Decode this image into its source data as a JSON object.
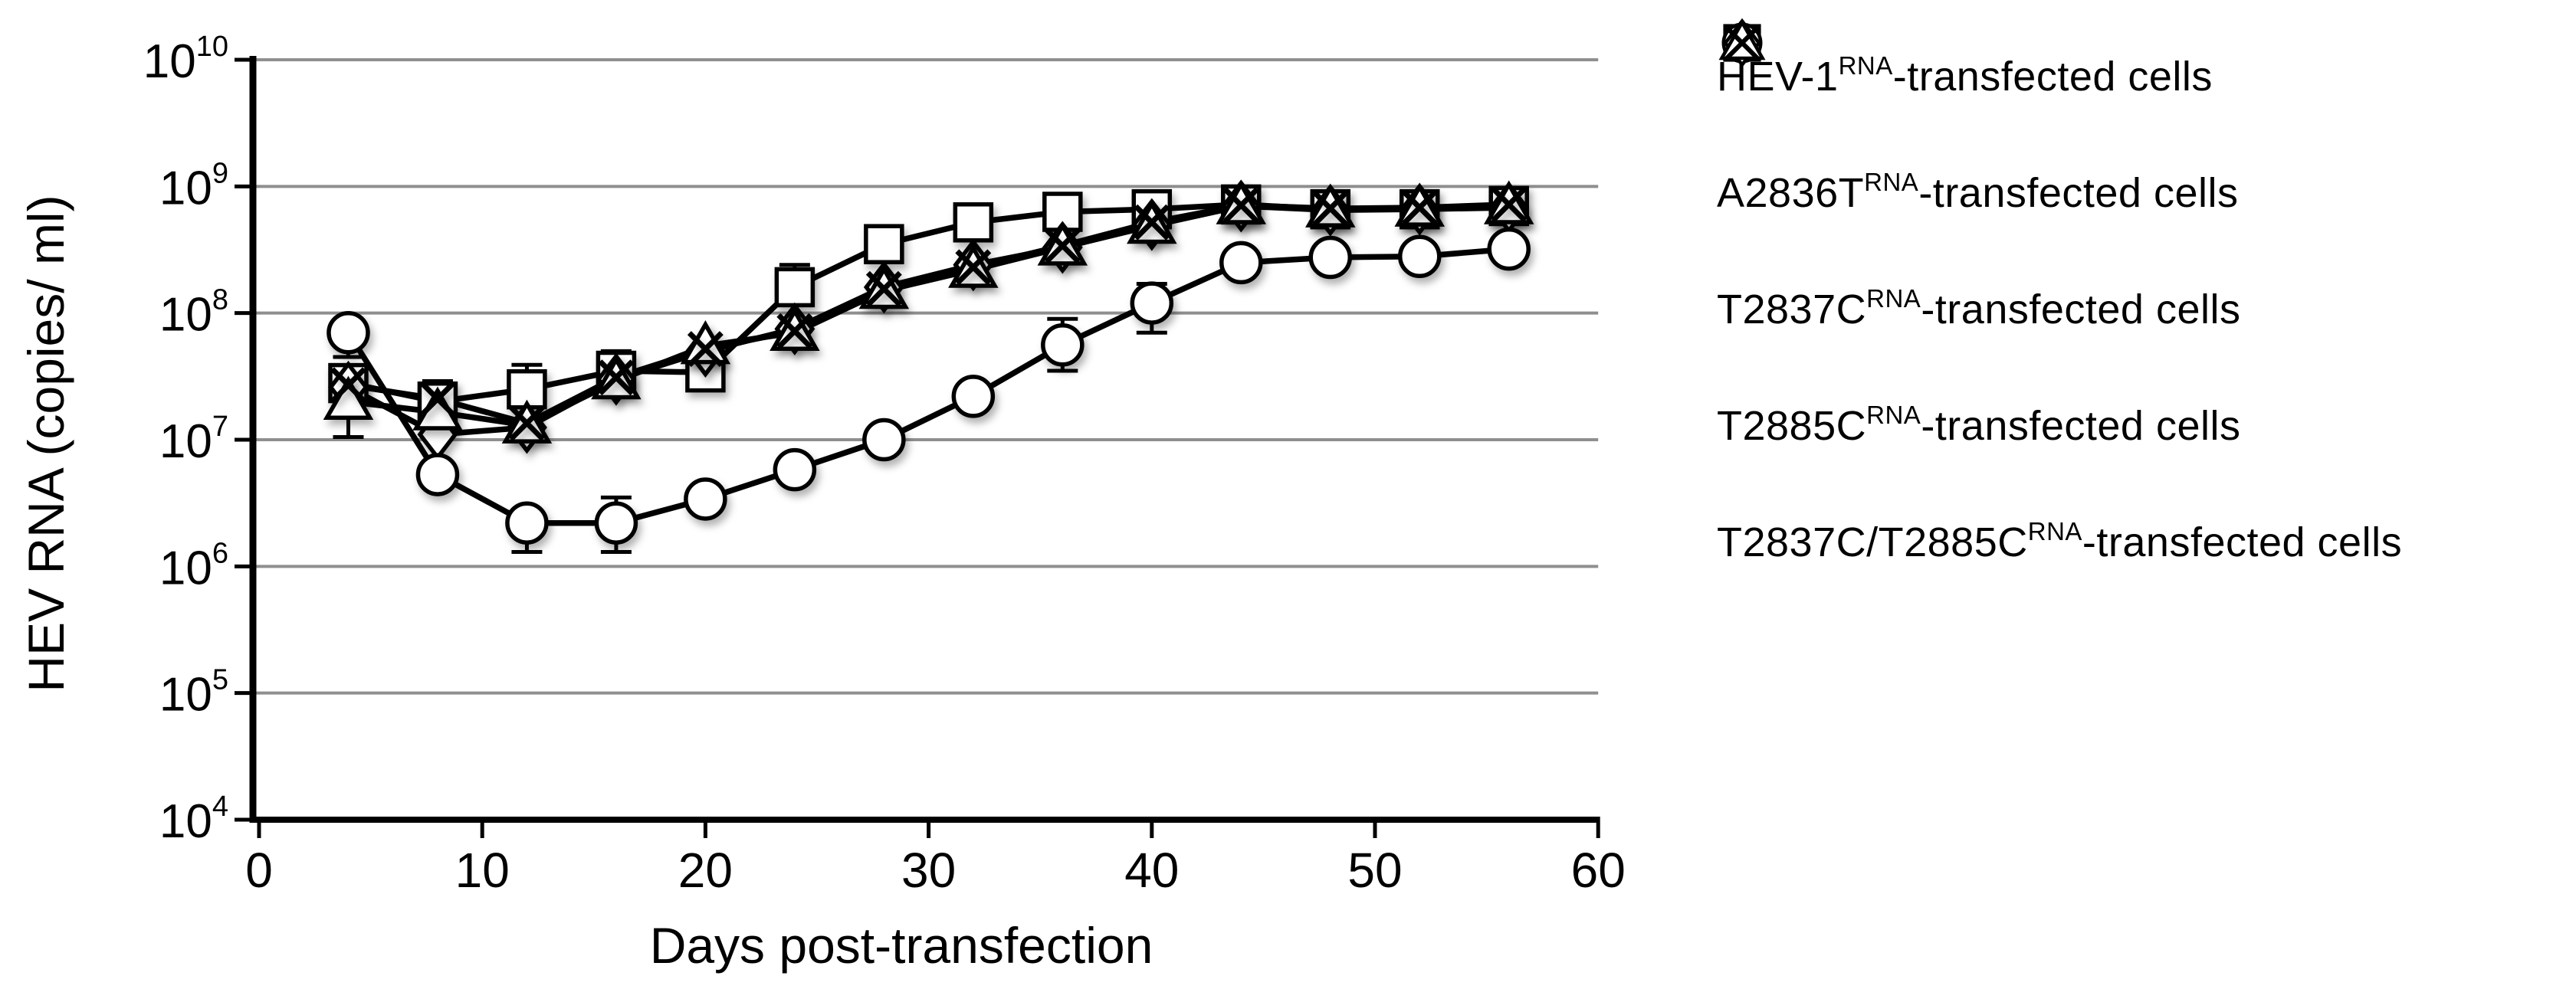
{
  "figure": {
    "background": "#ffffff",
    "ink_color": "#000000",
    "grid_color": "#8f8f8f"
  },
  "chart_data": {
    "type": "line",
    "title": "",
    "xlabel": "Days post-transfection",
    "ylabel": "HEV RNA (copies/ ml)",
    "x_ticks": [
      0,
      10,
      20,
      30,
      40,
      50,
      60
    ],
    "xlim": [
      0,
      60
    ],
    "yscale": "log10",
    "y_tick_exponents": [
      4,
      5,
      6,
      7,
      8,
      9,
      10
    ],
    "ylim": [
      10000.0,
      10000000000.0
    ],
    "grid": "horizontal",
    "legend_position": "right",
    "x_days": [
      4,
      8,
      12,
      16,
      20,
      24,
      28,
      32,
      36,
      40,
      44,
      48,
      52,
      56
    ],
    "series": [
      {
        "marker": "square",
        "label_base": "HEV-1",
        "label_sup": "RNA",
        "label_suffix": "-transfected cells",
        "values": [
          28000000.0,
          20000000.0,
          25000000.0,
          35000000.0,
          34000000.0,
          160000000.0,
          350000000.0,
          520000000.0,
          630000000.0,
          660000000.0,
          720000000.0,
          660000000.0,
          660000000.0,
          700000000.0
        ]
      },
      {
        "marker": "circle",
        "label_base": "A2836T",
        "label_sup": "RNA",
        "label_suffix": "-transfected cells",
        "values": [
          70000000.0,
          5300000.0,
          2200000.0,
          2200000.0,
          3400000.0,
          5800000.0,
          10000000.0,
          22000000.0,
          56000000.0,
          120000000.0,
          250000000.0,
          275000000.0,
          280000000.0,
          320000000.0
        ]
      },
      {
        "marker": "diamond",
        "label_base": "T2837C",
        "label_sup": "RNA",
        "label_suffix": "-transfected cells",
        "values": [
          26000000.0,
          11000000.0,
          12500000.0,
          30000000.0,
          50000000.0,
          75000000.0,
          160000000.0,
          240000000.0,
          330000000.0,
          500000000.0,
          700000000.0,
          650000000.0,
          660000000.0,
          680000000.0
        ]
      },
      {
        "marker": "triangle",
        "label_base": "T2885C",
        "label_sup": "RNA",
        "label_suffix": "-transfected cells",
        "values": [
          20000000.0,
          16500000.0,
          13000000.0,
          29000000.0,
          55000000.0,
          70000000.0,
          150000000.0,
          220000000.0,
          330000000.0,
          490000000.0,
          700000000.0,
          660000000.0,
          670000000.0,
          700000000.0
        ]
      },
      {
        "marker": "x",
        "label_base": "T2837C/T2885C",
        "label_sup": "RNA",
        "label_suffix": "-transfected cells",
        "values": [
          27000000.0,
          21000000.0,
          13500000.0,
          31000000.0,
          52000000.0,
          72000000.0,
          155000000.0,
          230000000.0,
          340000000.0,
          520000000.0,
          710000000.0,
          670000000.0,
          680000000.0,
          720000000.0
        ]
      }
    ],
    "error_bars": [
      {
        "marker": "circle",
        "day": 4,
        "lo": 45000000.0
      },
      {
        "marker": "triangle",
        "day": 4,
        "lo": 10500000.0,
        "hi": 36000000.0
      },
      {
        "marker": "x",
        "day": 8,
        "hi": 29000000.0
      },
      {
        "marker": "square",
        "day": 12,
        "hi": 39000000.0
      },
      {
        "marker": "circle",
        "day": 12,
        "lo": 1300000.0
      },
      {
        "marker": "square",
        "day": 16,
        "hi": 50000000.0
      },
      {
        "marker": "circle",
        "day": 16,
        "lo": 1300000.0,
        "hi": 3500000.0
      },
      {
        "marker": "square",
        "day": 24,
        "hi": 240000000.0
      },
      {
        "marker": "circle",
        "day": 36,
        "lo": 35000000.0,
        "hi": 90000000.0
      },
      {
        "marker": "circle",
        "day": 40,
        "lo": 70000000.0,
        "hi": 170000000.0
      },
      {
        "marker": "triangle",
        "day": 48,
        "lo": 500000000.0
      }
    ]
  }
}
